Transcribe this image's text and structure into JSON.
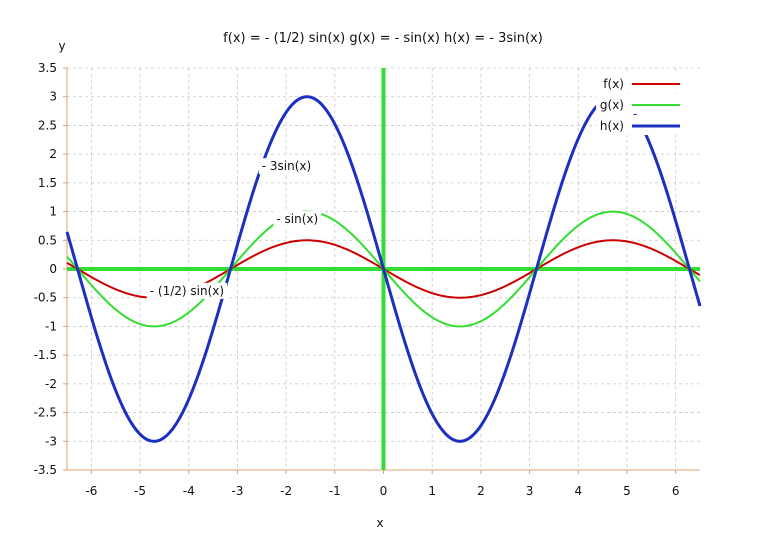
{
  "chart_data": {
    "type": "line",
    "title": "f(x) = - (1/2) sin(x)   g(x) = - sin(x)   h(x) = - 3sin(x)",
    "xlabel": "x",
    "ylabel": "y",
    "xlim": [
      -6.5,
      6.5
    ],
    "ylim": [
      -3.5,
      3.5
    ],
    "xticks": [
      -6,
      -5,
      -4,
      -3,
      -2,
      -1,
      0,
      1,
      2,
      3,
      4,
      5,
      6
    ],
    "yticks": [
      -3.5,
      -3,
      -2.5,
      -2,
      -1.5,
      -1,
      -0.5,
      0,
      0.5,
      1,
      1.5,
      2,
      2.5,
      3,
      3.5
    ],
    "grid": true,
    "legend_position": "top-right",
    "axis_color": "#33dd33",
    "series": [
      {
        "name": "f(x)",
        "color": "#cc0000",
        "amplitude": -0.5,
        "x": [
          -6.5,
          -6,
          -5.5,
          -5,
          -4.71,
          -4.5,
          -4,
          -3.5,
          -3.14,
          -3,
          -2.5,
          -2,
          -1.57,
          -1.5,
          -1,
          -0.5,
          0,
          0.5,
          1,
          1.5,
          1.57,
          2,
          2.5,
          3,
          3.14,
          3.5,
          4,
          4.5,
          4.71,
          5,
          5.5,
          6,
          6.5
        ],
        "y": [
          0.108,
          -0.14,
          -0.353,
          -0.479,
          -0.5,
          -0.489,
          -0.378,
          -0.175,
          0,
          0.071,
          0.299,
          0.455,
          0.5,
          0.499,
          0.421,
          0.24,
          0,
          -0.24,
          -0.421,
          -0.499,
          -0.5,
          -0.455,
          -0.299,
          -0.071,
          0,
          0.175,
          0.378,
          0.489,
          0.5,
          0.479,
          0.353,
          0.14,
          -0.108
        ]
      },
      {
        "name": "g(x)",
        "color": "#33dd33",
        "amplitude": -1,
        "x": [
          -6.5,
          -6,
          -5.5,
          -5,
          -4.71,
          -4.5,
          -4,
          -3.5,
          -3.14,
          -3,
          -2.5,
          -2,
          -1.57,
          -1.5,
          -1,
          -0.5,
          0,
          0.5,
          1,
          1.5,
          1.57,
          2,
          2.5,
          3,
          3.14,
          3.5,
          4,
          4.5,
          4.71,
          5,
          5.5,
          6,
          6.5
        ],
        "y": [
          0.215,
          -0.279,
          -0.706,
          -0.959,
          -1,
          -0.978,
          -0.757,
          -0.351,
          0,
          0.141,
          0.598,
          0.909,
          1,
          0.997,
          0.841,
          0.479,
          0,
          -0.479,
          -0.841,
          -0.997,
          -1,
          -0.909,
          -0.598,
          -0.141,
          0,
          0.351,
          0.757,
          0.978,
          1,
          0.959,
          0.706,
          0.279,
          -0.215
        ]
      },
      {
        "name": "h(x)",
        "color": "#1b2fc0",
        "amplitude": -3,
        "x": [
          -6.5,
          -6,
          -5.5,
          -5,
          -4.71,
          -4.5,
          -4,
          -3.5,
          -3.14,
          -3,
          -2.5,
          -2,
          -1.57,
          -1.5,
          -1,
          -0.5,
          0,
          0.5,
          1,
          1.5,
          1.57,
          2,
          2.5,
          3,
          3.14,
          3.5,
          4,
          4.5,
          4.71,
          5,
          5.5,
          6,
          6.5
        ],
        "y": [
          0.646,
          -0.838,
          -2.117,
          -2.877,
          -3,
          -2.933,
          -2.27,
          -1.052,
          0,
          0.423,
          1.795,
          2.728,
          3,
          2.992,
          2.524,
          1.438,
          0,
          -1.438,
          -2.524,
          -2.992,
          -3,
          -2.728,
          -1.795,
          -0.423,
          0,
          1.052,
          2.27,
          2.933,
          3,
          2.877,
          2.117,
          0.838,
          -0.646
        ]
      }
    ],
    "annotations": [
      {
        "text": "- 3sin(x)",
        "x": -2.5,
        "y": 1.72
      },
      {
        "text": "- sin(x)",
        "x": -2.2,
        "y": 0.8
      },
      {
        "text": "- (1/2) sin(x)",
        "x": -4.8,
        "y": -0.45
      }
    ]
  }
}
